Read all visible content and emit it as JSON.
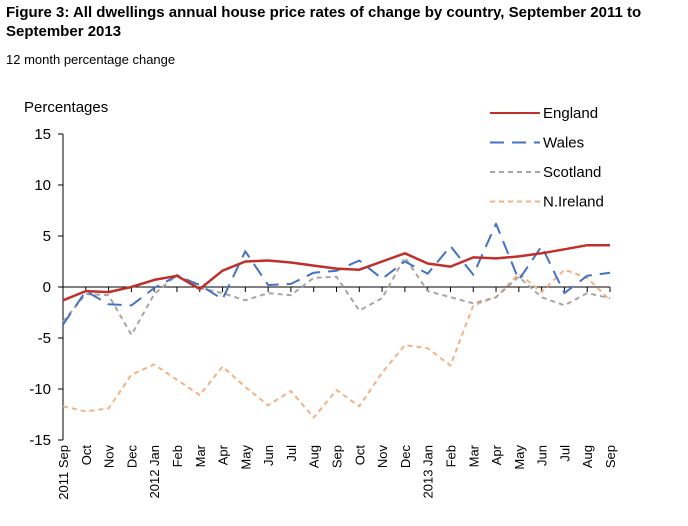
{
  "chart_data": {
    "type": "line",
    "title": "Figure 3: All dwellings annual house price rates of change by country, September 2011 to September 2013",
    "subtitle": "12 month percentage change",
    "ylabel": "Percentages",
    "xlabel": "",
    "ylim": [
      -15,
      15
    ],
    "yticks": [
      15,
      10,
      5,
      0,
      -5,
      -10,
      -15
    ],
    "categories": [
      "2011 Sep",
      "Oct",
      "Nov",
      "Dec",
      "2012 Jan",
      "Feb",
      "Mar",
      "Apr",
      "May",
      "Jun",
      "Jul",
      "Aug",
      "Sep",
      "Oct",
      "Nov",
      "Dec",
      "2013 Jan",
      "Feb",
      "Mar",
      "Apr",
      "May",
      "Jun",
      "Jul",
      "Aug",
      "Sep"
    ],
    "series": [
      {
        "name": "England",
        "color": "#c0302a",
        "dash": "solid",
        "values": [
          -1.3,
          -0.4,
          -0.5,
          0.0,
          0.7,
          1.1,
          -0.2,
          1.6,
          2.5,
          2.6,
          2.4,
          2.1,
          1.8,
          1.7,
          2.5,
          3.3,
          2.3,
          2.0,
          2.9,
          2.8,
          3.0,
          3.3,
          3.7,
          4.1,
          4.1
        ]
      },
      {
        "name": "Wales",
        "color": "#4472c4",
        "dash": "long",
        "values": [
          -3.7,
          -0.4,
          -1.7,
          -1.8,
          -0.1,
          1.1,
          0.2,
          -1.2,
          3.5,
          0.2,
          0.3,
          1.4,
          1.6,
          2.6,
          0.8,
          2.5,
          1.3,
          4.0,
          1.2,
          6.2,
          0.7,
          4.0,
          -0.6,
          1.1,
          1.4
        ]
      },
      {
        "name": "Scotland",
        "color": "#a6a6a6",
        "dash": "short",
        "values": [
          -3.4,
          -0.7,
          -0.8,
          -4.7,
          -0.7,
          1.2,
          -0.1,
          -0.6,
          -1.3,
          -0.6,
          -0.8,
          0.9,
          1.0,
          -2.3,
          -1.1,
          2.9,
          -0.4,
          -1.0,
          -1.6,
          -1.0,
          1.0,
          -1.0,
          -1.8,
          -0.6,
          -1.1
        ]
      },
      {
        "name": "N.Ireland",
        "color": "#f4b183",
        "dash": "short",
        "values": [
          -11.7,
          -12.2,
          -11.9,
          -8.6,
          -7.6,
          -9.1,
          -10.6,
          -7.8,
          -9.8,
          -11.6,
          -10.2,
          -12.8,
          -10.1,
          -11.7,
          -8.4,
          -5.7,
          -6.0,
          -7.7,
          -1.8,
          -1.0,
          1.3,
          -0.5,
          1.7,
          0.9,
          -1.3
        ]
      }
    ],
    "grid": false,
    "legend_position": "top-right"
  }
}
